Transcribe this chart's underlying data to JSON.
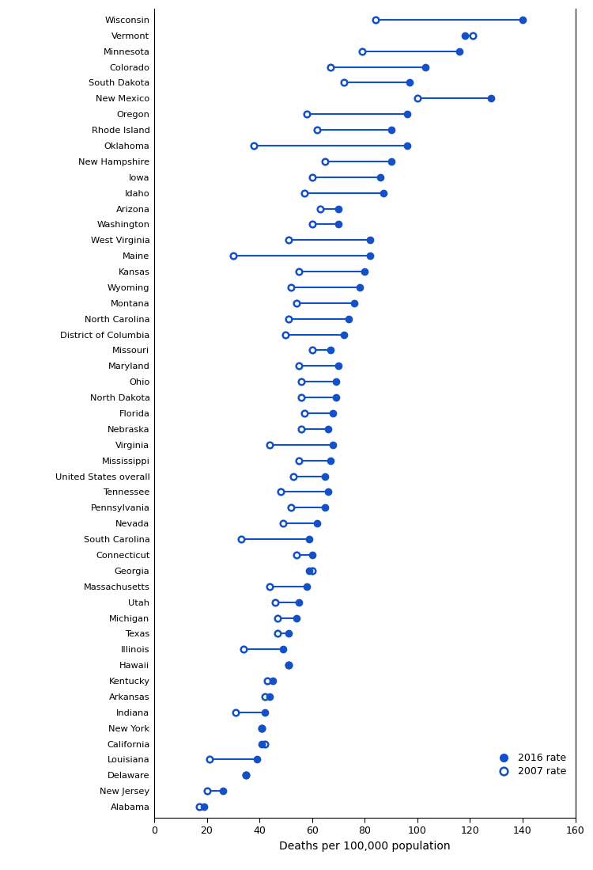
{
  "states": [
    "Wisconsin",
    "Vermont",
    "Minnesota",
    "Colorado",
    "South Dakota",
    "New Mexico",
    "Oregon",
    "Rhode Island",
    "Oklahoma",
    "New Hampshire",
    "Iowa",
    "Idaho",
    "Arizona",
    "Washington",
    "West Virginia",
    "Maine",
    "Kansas",
    "Wyoming",
    "Montana",
    "North Carolina",
    "District of Columbia",
    "Missouri",
    "Maryland",
    "Ohio",
    "North Dakota",
    "Florida",
    "Nebraska",
    "Virginia",
    "Mississippi",
    "United States overall",
    "Tennessee",
    "Pennsylvania",
    "Nevada",
    "South Carolina",
    "Connecticut",
    "Georgia",
    "Massachusetts",
    "Utah",
    "Michigan",
    "Texas",
    "Illinois",
    "Hawaii",
    "Kentucky",
    "Arkansas",
    "Indiana",
    "New York",
    "California",
    "Louisiana",
    "Delaware",
    "New Jersey",
    "Alabama"
  ],
  "rate_2007": [
    84,
    121,
    79,
    67,
    72,
    100,
    58,
    62,
    38,
    65,
    60,
    57,
    63,
    60,
    51,
    30,
    55,
    52,
    54,
    51,
    50,
    60,
    55,
    56,
    56,
    57,
    56,
    44,
    55,
    53,
    48,
    52,
    49,
    33,
    54,
    60,
    44,
    46,
    47,
    47,
    34,
    51,
    43,
    42,
    31,
    41,
    42,
    21,
    35,
    20,
    17
  ],
  "rate_2016": [
    140,
    118,
    116,
    103,
    97,
    128,
    96,
    90,
    96,
    90,
    86,
    87,
    70,
    70,
    82,
    82,
    80,
    78,
    76,
    74,
    72,
    67,
    70,
    69,
    69,
    68,
    66,
    68,
    67,
    65,
    66,
    65,
    62,
    59,
    60,
    59,
    58,
    55,
    54,
    51,
    49,
    51,
    45,
    44,
    42,
    41,
    41,
    39,
    35,
    26,
    19
  ],
  "xlabel": "Deaths per 100,000 population",
  "xlim": [
    0,
    160
  ],
  "xticks": [
    0,
    20,
    40,
    60,
    80,
    100,
    120,
    140,
    160
  ],
  "dot_color": "#1450c8",
  "legend_2016": "2016 rate",
  "legend_2007": "2007 rate"
}
